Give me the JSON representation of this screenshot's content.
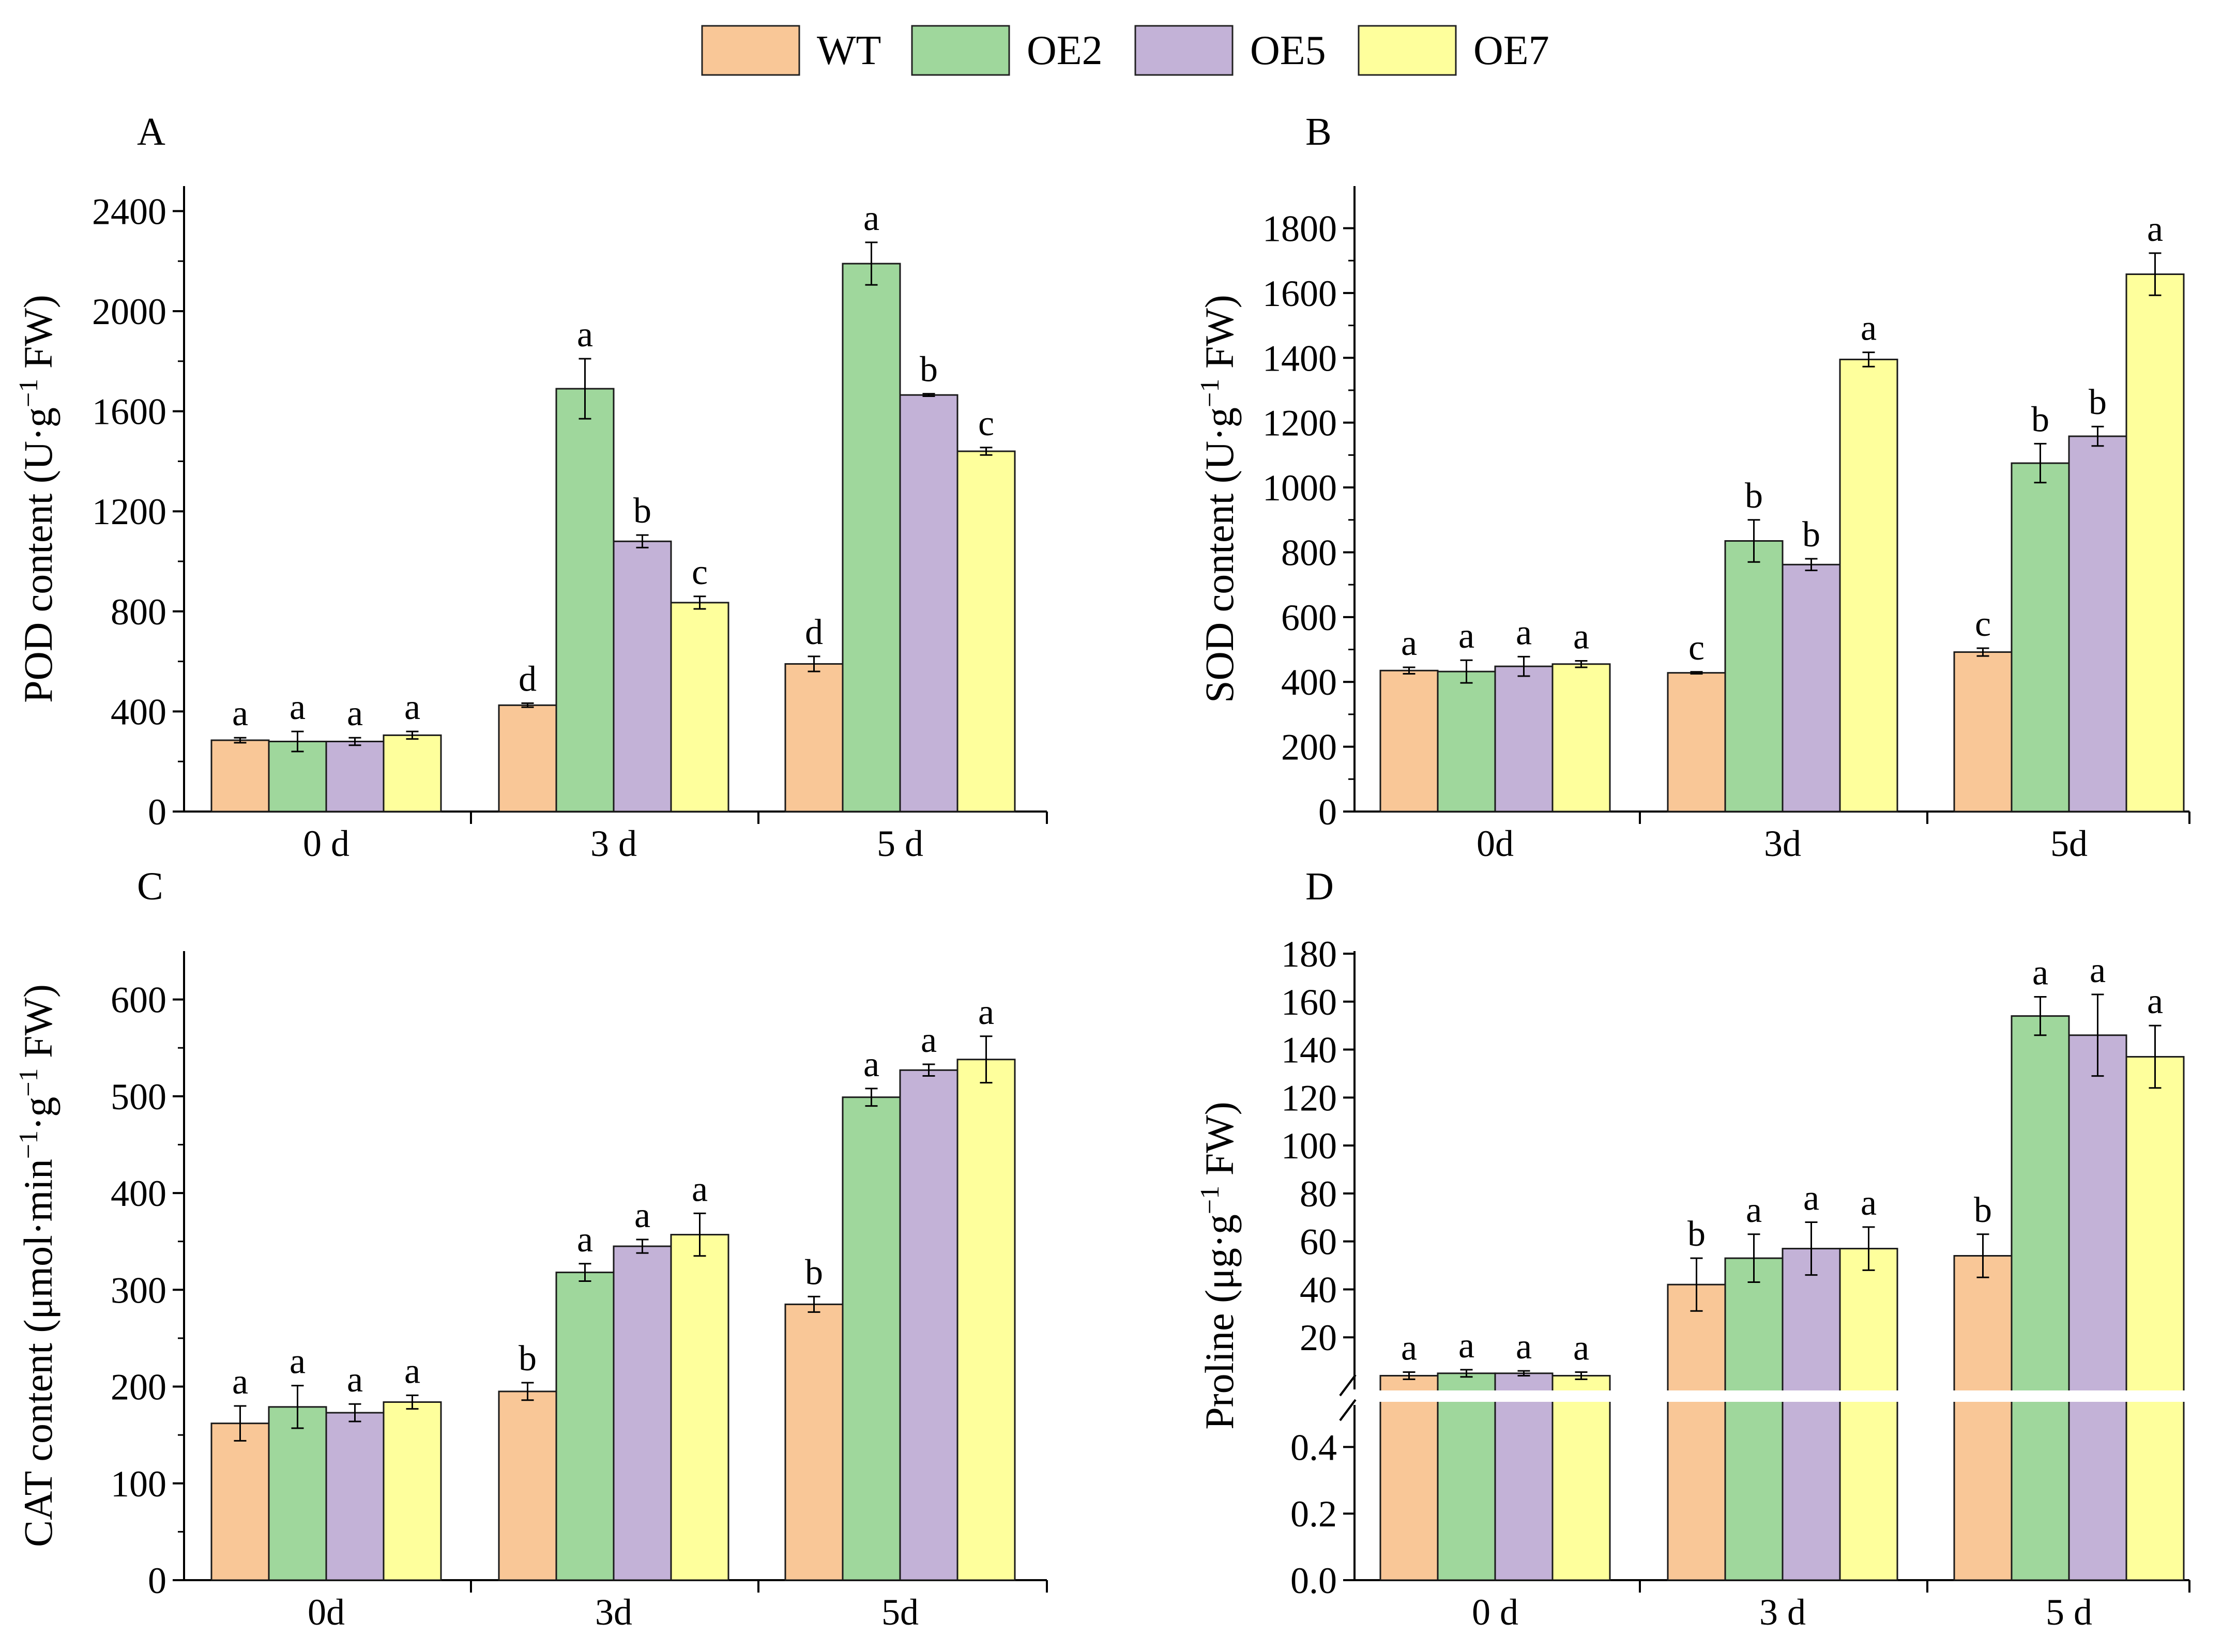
{
  "legend": {
    "entries": [
      {
        "name": "WT",
        "color": "#F9C797"
      },
      {
        "name": "OE2",
        "color": "#9FD79C"
      },
      {
        "name": "OE5",
        "color": "#C3B2D7"
      },
      {
        "name": "OE7",
        "color": "#FEFF9C"
      }
    ]
  },
  "chart_data": [
    {
      "id": "A",
      "type": "bar",
      "panel_label": "A",
      "ylabel_main": "POD content (U·g",
      "ylabel_sup": "−1",
      "ylabel_tail": " FW)",
      "categories": [
        "0 d",
        "3 d",
        "5 d"
      ],
      "ylim": [
        0,
        2500
      ],
      "yticks": [
        0,
        400,
        800,
        1200,
        1600,
        2000,
        2400
      ],
      "series": [
        {
          "name": "WT",
          "values": [
            285,
            425,
            590
          ],
          "errors": [
            10,
            8,
            30
          ],
          "sig": [
            "a",
            "d",
            "d"
          ]
        },
        {
          "name": "OE2",
          "values": [
            280,
            1690,
            2190
          ],
          "errors": [
            40,
            120,
            85
          ],
          "sig": [
            "a",
            "a",
            "a"
          ]
        },
        {
          "name": "OE5",
          "values": [
            280,
            1080,
            1665
          ],
          "errors": [
            15,
            25,
            5
          ],
          "sig": [
            "a",
            "b",
            "b"
          ]
        },
        {
          "name": "OE7",
          "values": [
            305,
            835,
            1440
          ],
          "errors": [
            15,
            25,
            15
          ],
          "sig": [
            "a",
            "c",
            "c"
          ]
        }
      ]
    },
    {
      "id": "B",
      "type": "bar",
      "panel_label": "B",
      "ylabel_main": "SOD content (U·g",
      "ylabel_sup": "−1",
      "ylabel_tail": " FW)",
      "categories": [
        "0d",
        "3d",
        "5d"
      ],
      "ylim": [
        0,
        1930
      ],
      "yticks": [
        0,
        200,
        400,
        600,
        800,
        1000,
        1200,
        1400,
        1600,
        1800
      ],
      "series": [
        {
          "name": "WT",
          "values": [
            435,
            428,
            492
          ],
          "errors": [
            10,
            3,
            12
          ],
          "sig": [
            "a",
            "c",
            "c"
          ]
        },
        {
          "name": "OE2",
          "values": [
            432,
            835,
            1075
          ],
          "errors": [
            35,
            65,
            60
          ],
          "sig": [
            "a",
            "b",
            "b"
          ]
        },
        {
          "name": "OE5",
          "values": [
            448,
            762,
            1158
          ],
          "errors": [
            30,
            18,
            30
          ],
          "sig": [
            "a",
            "b",
            "b"
          ]
        },
        {
          "name": "OE7",
          "values": [
            455,
            1395,
            1658
          ],
          "errors": [
            10,
            22,
            65
          ],
          "sig": [
            "a",
            "a",
            "a"
          ]
        }
      ]
    },
    {
      "id": "C",
      "type": "bar",
      "panel_label": "C",
      "ylabel_main": "CAT content (μmol·min",
      "ylabel_sup": "−1",
      "ylabel_mid": "·g",
      "ylabel_sup2": "−1",
      "ylabel_tail": " FW)",
      "categories": [
        "0d",
        "3d",
        "5d"
      ],
      "ylim": [
        0,
        650
      ],
      "yticks": [
        0,
        100,
        200,
        300,
        400,
        500,
        600
      ],
      "series": [
        {
          "name": "WT",
          "values": [
            162,
            195,
            285
          ],
          "errors": [
            18,
            9,
            8
          ],
          "sig": [
            "a",
            "b",
            "b"
          ]
        },
        {
          "name": "OE2",
          "values": [
            179,
            318,
            499
          ],
          "errors": [
            22,
            9,
            9
          ],
          "sig": [
            "a",
            "a",
            "a"
          ]
        },
        {
          "name": "OE5",
          "values": [
            173,
            345,
            527
          ],
          "errors": [
            9,
            7,
            6
          ],
          "sig": [
            "a",
            "a",
            "a"
          ]
        },
        {
          "name": "OE7",
          "values": [
            184,
            357,
            538
          ],
          "errors": [
            7,
            22,
            24
          ],
          "sig": [
            "a",
            "a",
            "a"
          ]
        }
      ]
    },
    {
      "id": "D",
      "type": "bar",
      "panel_label": "D",
      "ylabel_main": "Proline  (μg·g",
      "ylabel_sup": "−1",
      "ylabel_tail": " FW)",
      "categories": [
        "0 d",
        "3 d",
        "5 d"
      ],
      "broken_axis": true,
      "lower_ylim": [
        0,
        0.5
      ],
      "lower_yticks": [
        0.0,
        0.2,
        0.4
      ],
      "upper_ylim": [
        0,
        180
      ],
      "upper_yticks": [
        20,
        40,
        60,
        80,
        100,
        120,
        140,
        160,
        180
      ],
      "series": [
        {
          "name": "WT",
          "values": [
            4.0,
            42,
            54
          ],
          "errors": [
            1.5,
            11,
            9
          ],
          "sig": [
            "a",
            "b",
            "b"
          ]
        },
        {
          "name": "OE2",
          "values": [
            5.0,
            53,
            154
          ],
          "errors": [
            1.5,
            10,
            8
          ],
          "sig": [
            "a",
            "a",
            "a"
          ]
        },
        {
          "name": "OE5",
          "values": [
            5.0,
            57,
            146
          ],
          "errors": [
            1.0,
            11,
            17
          ],
          "sig": [
            "a",
            "a",
            "a"
          ]
        },
        {
          "name": "OE7",
          "values": [
            4.0,
            57,
            137
          ],
          "errors": [
            1.5,
            9,
            13
          ],
          "sig": [
            "a",
            "a",
            "a"
          ]
        }
      ]
    }
  ]
}
